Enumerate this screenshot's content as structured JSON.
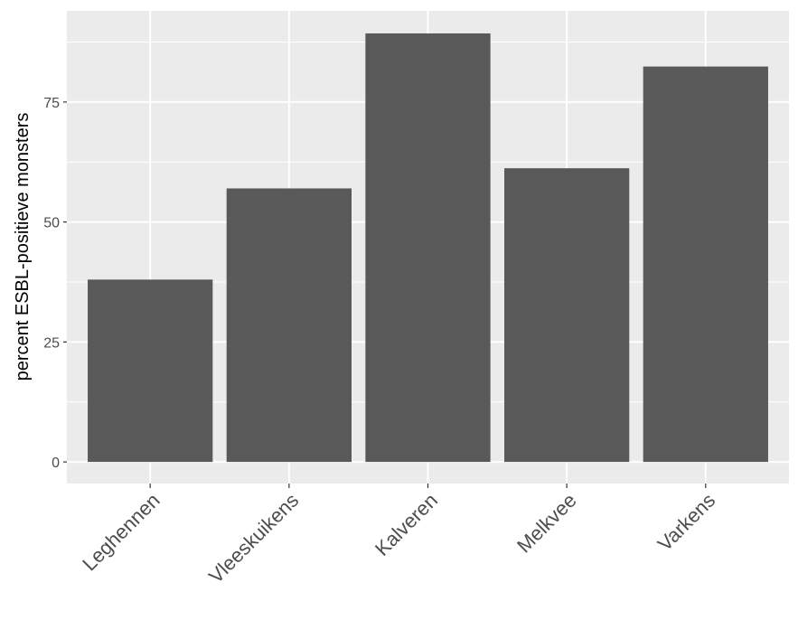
{
  "chart_data": {
    "type": "bar",
    "title": "",
    "xlabel": "",
    "ylabel": "percent ESBL-positieve monsters",
    "categories": [
      "Leghennen",
      "Vleeskuikens",
      "Kalveren",
      "Melkvee",
      "Varkens"
    ],
    "values": [
      38,
      57,
      89.3,
      61.2,
      82.4
    ],
    "ylim": [
      -4.5,
      94
    ],
    "yticks": [
      0,
      25,
      50,
      75
    ],
    "grid": true,
    "legend": "none",
    "colors": {
      "panel_background": "#ebebeb",
      "grid": "#ffffff",
      "bar": "#595959",
      "tick_text": "#4d4d4d",
      "tick_mark": "#333333"
    }
  }
}
